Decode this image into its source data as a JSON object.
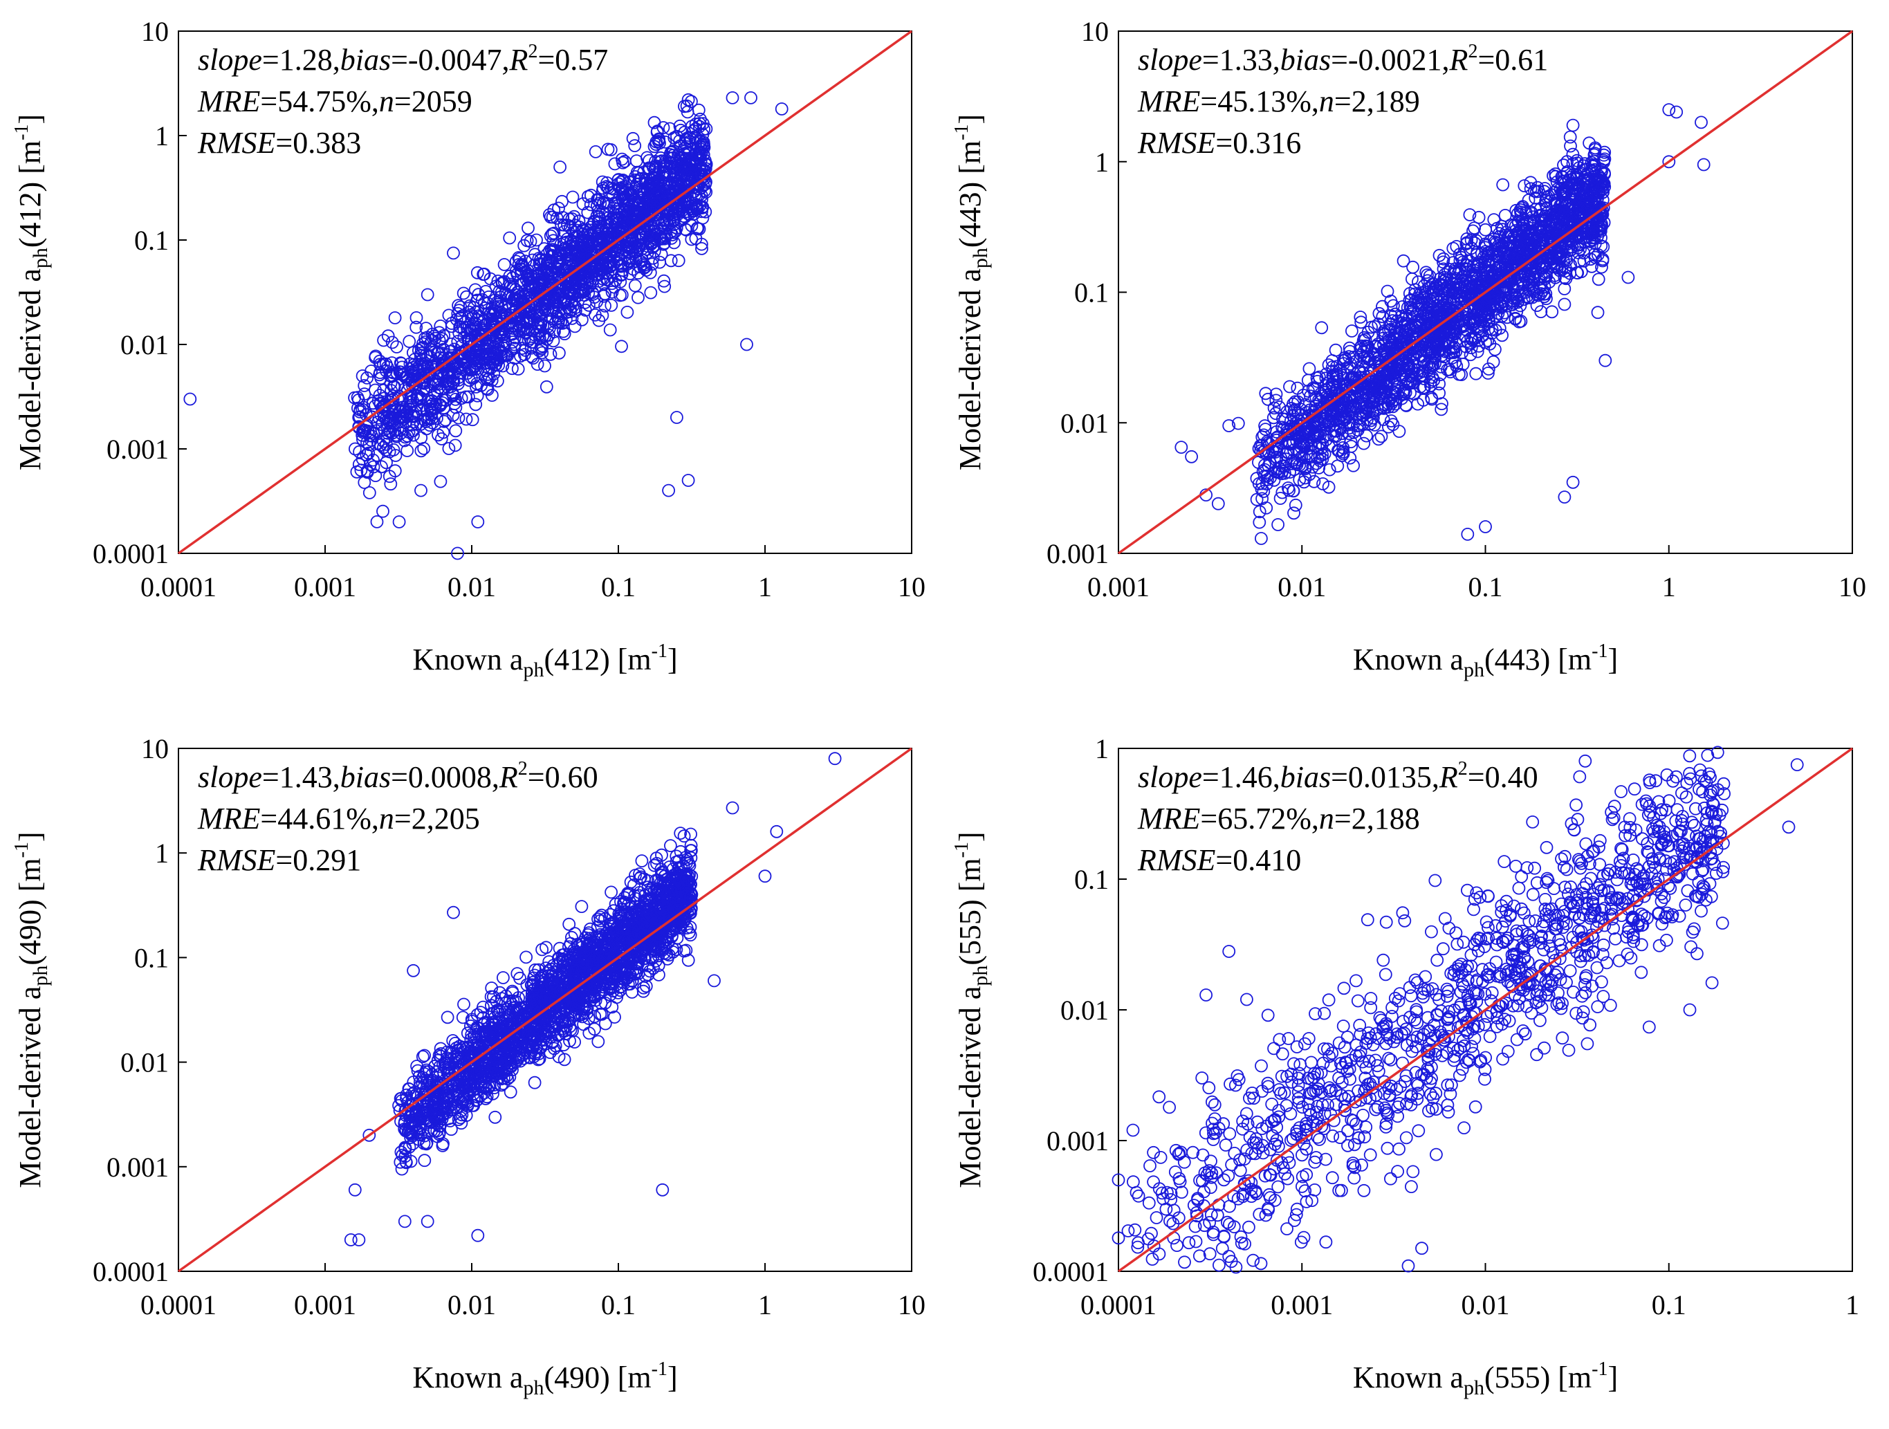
{
  "chart_data": [
    {
      "type": "scatter",
      "x_scale": "log",
      "y_scale": "log",
      "xlim": [
        0.0001,
        10
      ],
      "ylim": [
        0.0001,
        10
      ],
      "x_ticks": [
        "0.0001",
        "0.001",
        "0.01",
        "0.1",
        "1",
        "10"
      ],
      "y_ticks": [
        "0.0001",
        "0.001",
        "0.01",
        "0.1",
        "1",
        "10"
      ],
      "xlabel": {
        "pre": "Known ",
        "var": "a",
        "sub": "ph",
        "post": "(412) [m",
        "sup": "-1",
        "end": "]"
      },
      "ylabel": {
        "pre": "Model-derived ",
        "var": "a",
        "sub": "ph",
        "post": "(412) [m",
        "sup": "-1",
        "end": "]"
      },
      "stats": {
        "slope_key": "slope",
        "slope": "=1.28,",
        "bias_key": "bias",
        "bias": "=-0.0047,",
        "r2_key": "R",
        "r2_sup": "2",
        "r2": "=0.57",
        "mre_key": "MRE",
        "mre": "=54.75%,",
        "n_key": "n",
        "n": "=2059",
        "rmse_key": "RMSE",
        "rmse": "=0.383"
      },
      "cloud": {
        "count": 2059,
        "x_log_range": [
          -2.8,
          -0.4
        ],
        "y_log_mean_offset": 0.0,
        "slope": 1.28,
        "log_spread": 0.28
      },
      "points": [
        [
          0.00012,
          0.003
        ],
        [
          0.0017,
          0.0016
        ],
        [
          0.0018,
          0.005
        ],
        [
          0.0022,
          0.0075
        ],
        [
          0.0025,
          0.0065
        ],
        [
          0.002,
          0.0011
        ],
        [
          0.0018,
          0.0008
        ],
        [
          0.0032,
          0.0002
        ],
        [
          0.0045,
          0.0004
        ],
        [
          0.008,
          0.0001
        ],
        [
          0.011,
          0.0002
        ],
        [
          0.005,
          0.03
        ],
        [
          0.0075,
          0.075
        ],
        [
          0.04,
          0.5
        ],
        [
          0.07,
          0.7
        ],
        [
          0.25,
          0.002
        ],
        [
          0.3,
          0.0005
        ],
        [
          0.22,
          0.0004
        ],
        [
          0.3,
          2.2
        ],
        [
          0.6,
          2.3
        ],
        [
          0.8,
          2.3
        ],
        [
          1.3,
          1.8
        ],
        [
          0.75,
          0.01
        ],
        [
          0.003,
          0.018
        ]
      ],
      "series": [
        {
          "color": "#1a1adb"
        }
      ],
      "reference_line": {
        "from": [
          0.0001,
          0.0001
        ],
        "to": [
          10,
          10
        ],
        "color": "#e03030"
      },
      "grid": false
    },
    {
      "type": "scatter",
      "x_scale": "log",
      "y_scale": "log",
      "xlim": [
        0.001,
        10
      ],
      "ylim": [
        0.001,
        10
      ],
      "x_ticks": [
        "0.001",
        "0.01",
        "0.1",
        "1",
        "10"
      ],
      "y_ticks": [
        "0.001",
        "0.01",
        "0.1",
        "1",
        "10"
      ],
      "xlabel": {
        "pre": "Known ",
        "var": "a",
        "sub": "ph",
        "post": "(443) [m",
        "sup": "-1",
        "end": "]"
      },
      "ylabel": {
        "pre": "Model-derived ",
        "var": "a",
        "sub": "ph",
        "post": "(443) [m",
        "sup": "-1",
        "end": "]"
      },
      "stats": {
        "slope_key": "slope",
        "slope": "=1.33,",
        "bias_key": "bias",
        "bias": "=-0.0021,",
        "r2_key": "R",
        "r2_sup": "2",
        "r2": "=0.61",
        "mre_key": "MRE",
        "mre": "=45.13%,",
        "n_key": "n",
        "n": "=2,189",
        "rmse_key": "RMSE",
        "rmse": "=0.316"
      },
      "cloud": {
        "count": 2189,
        "x_log_range": [
          -2.25,
          -0.35
        ],
        "y_log_mean_offset": 0.0,
        "slope": 1.33,
        "log_spread": 0.22
      },
      "points": [
        [
          0.0022,
          0.0065
        ],
        [
          0.0025,
          0.0055
        ],
        [
          0.003,
          0.0028
        ],
        [
          0.0035,
          0.0024
        ],
        [
          0.004,
          0.0095
        ],
        [
          0.0045,
          0.0099
        ],
        [
          0.006,
          0.0013
        ],
        [
          0.009,
          0.003
        ],
        [
          0.1,
          0.22
        ],
        [
          0.13,
          0.15
        ],
        [
          0.08,
          0.0014
        ],
        [
          0.1,
          0.0016
        ],
        [
          0.27,
          0.0027
        ],
        [
          0.3,
          0.0035
        ],
        [
          0.45,
          0.03
        ],
        [
          1.0,
          2.5
        ],
        [
          1.1,
          2.4
        ],
        [
          1.5,
          2.0
        ],
        [
          1.55,
          0.95
        ],
        [
          1.0,
          1.0
        ],
        [
          0.3,
          1.9
        ],
        [
          0.6,
          0.13
        ]
      ],
      "series": [
        {
          "color": "#1a1adb"
        }
      ],
      "reference_line": {
        "from": [
          0.001,
          0.001
        ],
        "to": [
          10,
          10
        ],
        "color": "#e03030"
      },
      "grid": false
    },
    {
      "type": "scatter",
      "x_scale": "log",
      "y_scale": "log",
      "xlim": [
        0.0001,
        10
      ],
      "ylim": [
        0.0001,
        10
      ],
      "x_ticks": [
        "0.0001",
        "0.001",
        "0.01",
        "0.1",
        "1",
        "10"
      ],
      "y_ticks": [
        "0.0001",
        "0.001",
        "0.01",
        "0.1",
        "1",
        "10"
      ],
      "xlabel": {
        "pre": "Known ",
        "var": "a",
        "sub": "ph",
        "post": "(490) [m",
        "sup": "-1",
        "end": "]"
      },
      "ylabel": {
        "pre": "Model-derived ",
        "var": "a",
        "sub": "ph",
        "post": "(490) [m",
        "sup": "-1",
        "end": "]"
      },
      "stats": {
        "slope_key": "slope",
        "slope": "=1.43,",
        "bias_key": "bias",
        "bias": "=0.0008,",
        "r2_key": "R",
        "r2_sup": "2",
        "r2": "=0.60",
        "mre_key": "MRE",
        "mre": "=44.61%,",
        "n_key": "n",
        "n": "=2,205",
        "rmse_key": "RMSE",
        "rmse": "=0.291"
      },
      "cloud": {
        "count": 2205,
        "x_log_range": [
          -2.5,
          -0.5
        ],
        "y_log_mean_offset": 0.0,
        "slope": 1.43,
        "log_spread": 0.22
      },
      "points": [
        [
          0.0015,
          0.0002
        ],
        [
          0.0017,
          0.0002
        ],
        [
          0.0016,
          0.0006
        ],
        [
          0.002,
          0.002
        ],
        [
          0.0035,
          0.0003
        ],
        [
          0.005,
          0.0003
        ],
        [
          0.011,
          0.00022
        ],
        [
          0.0075,
          0.27
        ],
        [
          0.004,
          0.075
        ],
        [
          3.0,
          8.0
        ],
        [
          1.2,
          1.6
        ],
        [
          0.6,
          2.7
        ],
        [
          0.2,
          0.0006
        ],
        [
          0.45,
          0.06
        ],
        [
          1.0,
          0.6
        ]
      ],
      "series": [
        {
          "color": "#1a1adb"
        }
      ],
      "reference_line": {
        "from": [
          0.0001,
          0.0001
        ],
        "to": [
          10,
          10
        ],
        "color": "#e03030"
      },
      "grid": false
    },
    {
      "type": "scatter",
      "x_scale": "log",
      "y_scale": "log",
      "xlim": [
        0.0001,
        1
      ],
      "ylim": [
        0.0001,
        1
      ],
      "x_ticks": [
        "0.0001",
        "0.001",
        "0.01",
        "0.1",
        "1"
      ],
      "y_ticks": [
        "0.0001",
        "0.001",
        "0.01",
        "0.1",
        "1"
      ],
      "xlabel": {
        "pre": "Known ",
        "var": "a",
        "sub": "ph",
        "post": "(555) [m",
        "sup": "-1",
        "end": "]"
      },
      "ylabel": {
        "pre": "Model-derived ",
        "var": "a",
        "sub": "ph",
        "post": "(555) [m",
        "sup": "-1",
        "end": "]"
      },
      "stats": {
        "slope_key": "slope",
        "slope": "=1.46,",
        "bias_key": "bias",
        "bias": "=0.0135,",
        "r2_key": "R",
        "r2_sup": "2",
        "r2": "=0.40",
        "mre_key": "MRE",
        "mre": "=65.72%,",
        "n_key": "n",
        "n": "=2,188",
        "rmse_key": "RMSE",
        "rmse": "=0.410"
      },
      "cloud": {
        "count": 2188,
        "x_log_range": [
          -3.95,
          -0.7
        ],
        "y_log_mean_offset": 0.15,
        "slope": 1.0,
        "log_spread": 0.38,
        "density": 0.55
      },
      "points": [
        [
          0.0001,
          0.0005
        ],
        [
          0.0001,
          0.00018
        ],
        [
          0.00012,
          0.0012
        ],
        [
          0.0003,
          0.013
        ],
        [
          0.0004,
          0.028
        ],
        [
          0.0005,
          0.012
        ],
        [
          0.0004,
          0.00013
        ],
        [
          0.0038,
          0.00011
        ],
        [
          0.0045,
          0.00015
        ],
        [
          0.13,
          0.01
        ],
        [
          0.2,
          0.45
        ],
        [
          0.5,
          0.75
        ],
        [
          0.45,
          0.25
        ],
        [
          0.035,
          0.8
        ]
      ],
      "series": [
        {
          "color": "#1a1adb"
        }
      ],
      "reference_line": {
        "from": [
          0.0001,
          0.0001
        ],
        "to": [
          1,
          1
        ],
        "color": "#e03030"
      },
      "grid": false
    }
  ]
}
